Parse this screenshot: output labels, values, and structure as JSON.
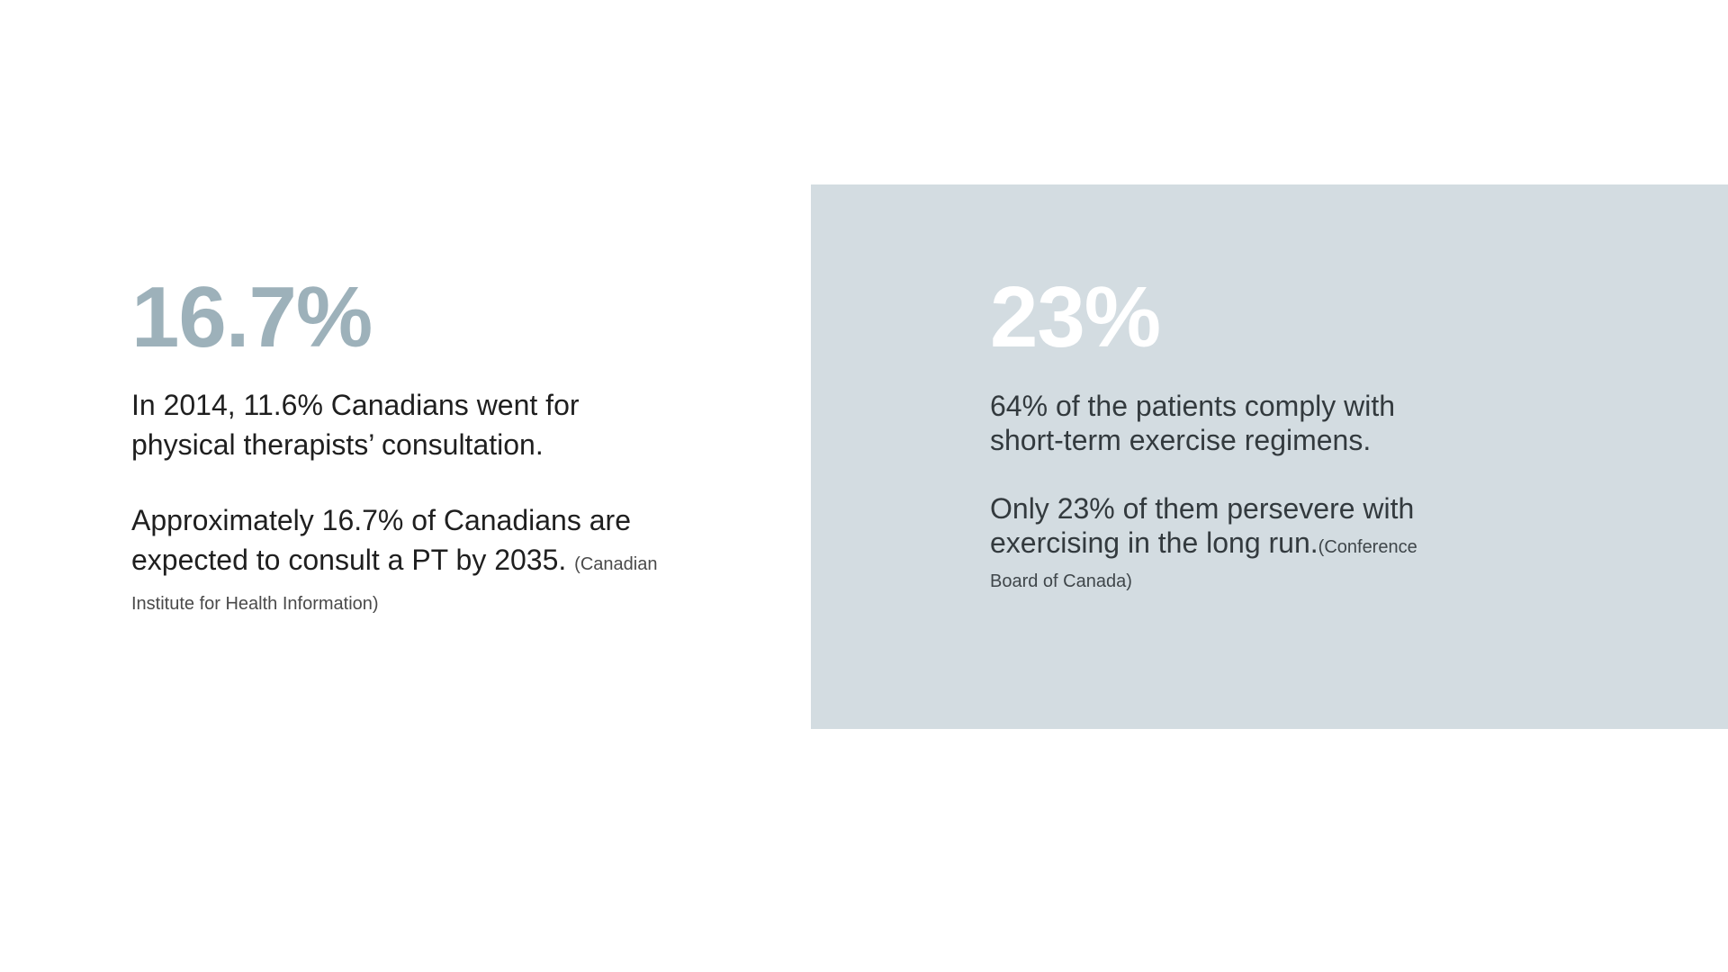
{
  "left": {
    "stat": "16.7%",
    "paragraph1": "In 2014, 11.6% Canadians went for physical therapists’ consultation.",
    "paragraph2": "Approximately 16.7% of Canadians are expected to consult a PT by 2035.",
    "citation": "(Canadian Institute for Health Information)"
  },
  "right": {
    "stat": "23%",
    "paragraph1": "64% of the patients comply with short-term exercise regimens.",
    "paragraph2": "Only 23% of them persevere with exercising in the long run.",
    "citation": "(Conference Board of Canada)"
  },
  "colors": {
    "left_stat": "#9db1ba",
    "right_stat": "#ffffff",
    "right_panel_bg": "#d3dce1"
  }
}
